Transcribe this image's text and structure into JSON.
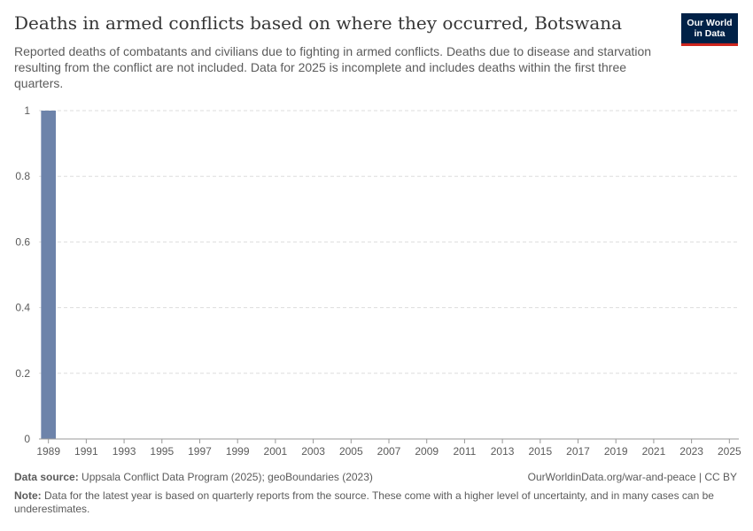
{
  "title": "Deaths in armed conflicts based on where they occurred, Botswana",
  "subtitle": "Reported deaths of combatants and civilians due to fighting in armed conflicts. Deaths due to disease and starvation resulting from the conflict are not included. Data for 2025 is incomplete and includes deaths within the first three quarters.",
  "logo": {
    "line1": "Our World",
    "line2": "in Data"
  },
  "footer": {
    "source_label": "Data source:",
    "source_text": "Uppsala Conflict Data Program (2025); geoBoundaries (2023)",
    "url": "OurWorldinData.org/war-and-peace | CC BY",
    "note_label": "Note:",
    "note_text": "Data for the latest year is based on quarterly reports from the source. These come with a higher level of uncertainty, and in many cases can be underestimates."
  },
  "colors": {
    "bar": "#6d83aa",
    "grid": "#dddddd",
    "axis": "#5b5b5b"
  },
  "chart_data": {
    "type": "bar",
    "title": "Deaths in armed conflicts based on where they occurred, Botswana",
    "xlabel": "",
    "ylabel": "",
    "ylim": [
      0,
      1
    ],
    "yticks": [
      "0",
      "0.2",
      "0.4",
      "0.6",
      "0.8",
      "1"
    ],
    "ytick_values": [
      0,
      0.2,
      0.4,
      0.6,
      0.8,
      1
    ],
    "xlim": [
      1989,
      2025
    ],
    "xticks": [
      1989,
      1991,
      1993,
      1995,
      1997,
      1999,
      2001,
      2003,
      2005,
      2007,
      2009,
      2011,
      2013,
      2015,
      2017,
      2019,
      2021,
      2023,
      2025
    ],
    "x": [
      1989,
      1990,
      1991,
      1992,
      1993,
      1994,
      1995,
      1996,
      1997,
      1998,
      1999,
      2000,
      2001,
      2002,
      2003,
      2004,
      2005,
      2006,
      2007,
      2008,
      2009,
      2010,
      2011,
      2012,
      2013,
      2014,
      2015,
      2016,
      2017,
      2018,
      2019,
      2020,
      2021,
      2022,
      2023,
      2024,
      2025
    ],
    "values": [
      1,
      0,
      0,
      0,
      0,
      0,
      0,
      0,
      0,
      0,
      0,
      0,
      0,
      0,
      0,
      0,
      0,
      0,
      0,
      0,
      0,
      0,
      0,
      0,
      0,
      0,
      0,
      0,
      0,
      0,
      0,
      0,
      0,
      0,
      0,
      0,
      0
    ],
    "grid": true
  }
}
